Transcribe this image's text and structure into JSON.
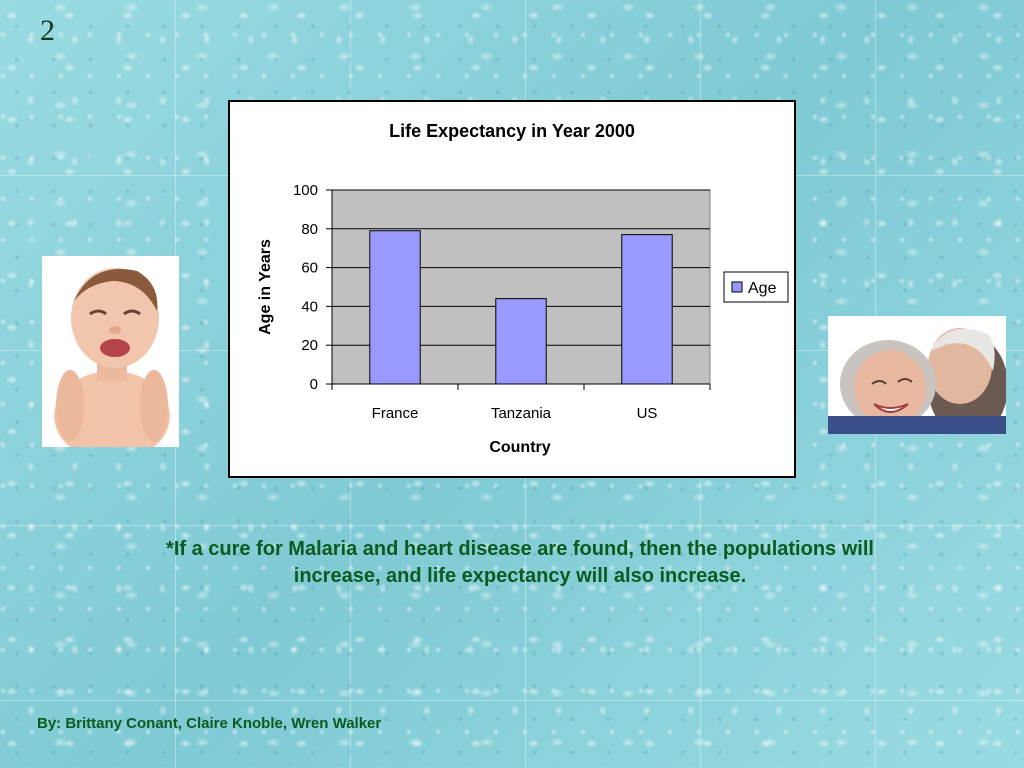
{
  "slide": {
    "number": "2",
    "hypothesis": "*If a cure for Malaria and heart disease are found, then the populations will increase, and life expectancy will also increase.",
    "credits": "By:  Brittany Conant, Claire Knoble, Wren Walker"
  },
  "images": {
    "baby": "crying-baby-photo",
    "elderly": "elderly-couple-photo"
  },
  "chart_data": {
    "type": "bar",
    "title": "Life Expectancy in Year 2000",
    "xlabel": "Country",
    "ylabel": "Age in Years",
    "categories": [
      "France",
      "Tanzania",
      "US"
    ],
    "series": [
      {
        "name": "Age",
        "values": [
          79,
          44,
          77
        ],
        "color": "#9999ff"
      }
    ],
    "ylim": [
      0,
      100
    ],
    "yticks": [
      0,
      20,
      40,
      60,
      80,
      100
    ],
    "grid": true,
    "plot_background": "#c0c0c0",
    "legend_position": "right"
  }
}
